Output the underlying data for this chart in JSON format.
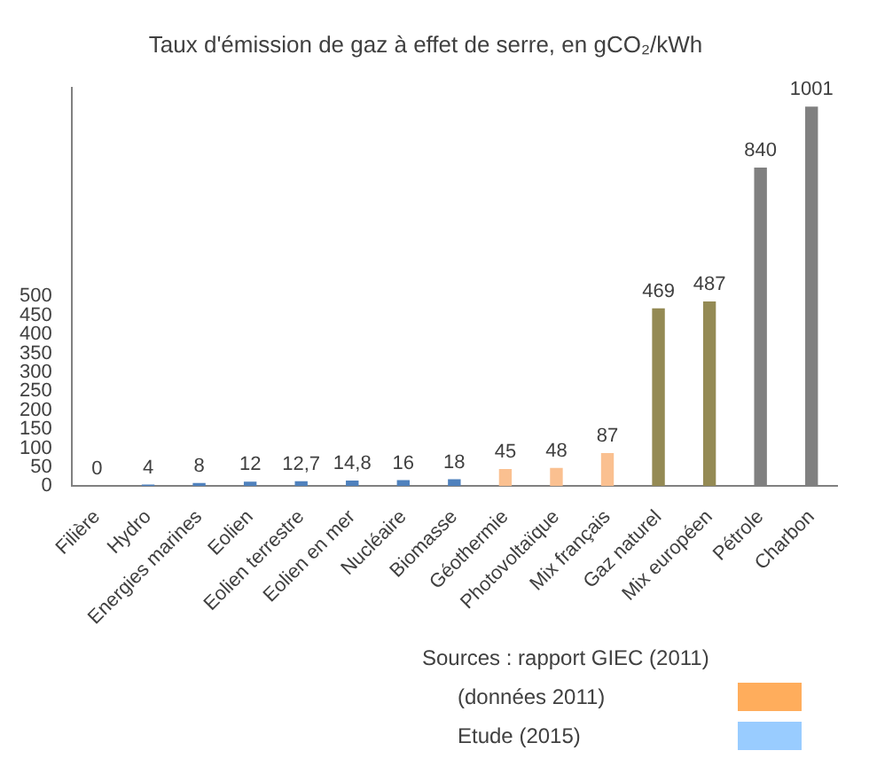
{
  "chart_data": {
    "type": "bar",
    "title": "Taux d'émission de gaz à effet de serre, en gCO₂/kWh",
    "categories": [
      "Filière",
      "Hydro",
      "Energies marines",
      "Eolien",
      "Eolien terrestre",
      "Eolien en mer",
      "Nucléaire",
      "Biomasse",
      "Géothermie",
      "Photovoltaïque",
      "Mix français",
      "Gaz naturel",
      "Mix européen",
      "Pétrole",
      "Charbon"
    ],
    "values": [
      0,
      4,
      8,
      12,
      12.7,
      14.8,
      16,
      18,
      45,
      48,
      87,
      469,
      487,
      840,
      1001
    ],
    "colors": [
      "#4f81bd",
      "#4f81bd",
      "#4f81bd",
      "#4f81bd",
      "#4f81bd",
      "#4f81bd",
      "#4f81bd",
      "#4f81bd",
      "#fac090",
      "#fac090",
      "#fac090",
      "#948a54",
      "#948a54",
      "#808080",
      "#808080"
    ],
    "value_labels": [
      "0",
      "4",
      "8",
      "12",
      "12,7",
      "14,8",
      "16",
      "18",
      "45",
      "48",
      "87",
      "469",
      "487",
      "840",
      "1001"
    ],
    "ylim": [
      0,
      1050
    ],
    "yticks": [
      0,
      50,
      100,
      150,
      200,
      250,
      300,
      350,
      400,
      450,
      500
    ],
    "grid": false,
    "legend": false,
    "annotations": [
      "Sources : rapport GIEC (2011)",
      "(données 2011)",
      "Etude (2015)"
    ]
  }
}
